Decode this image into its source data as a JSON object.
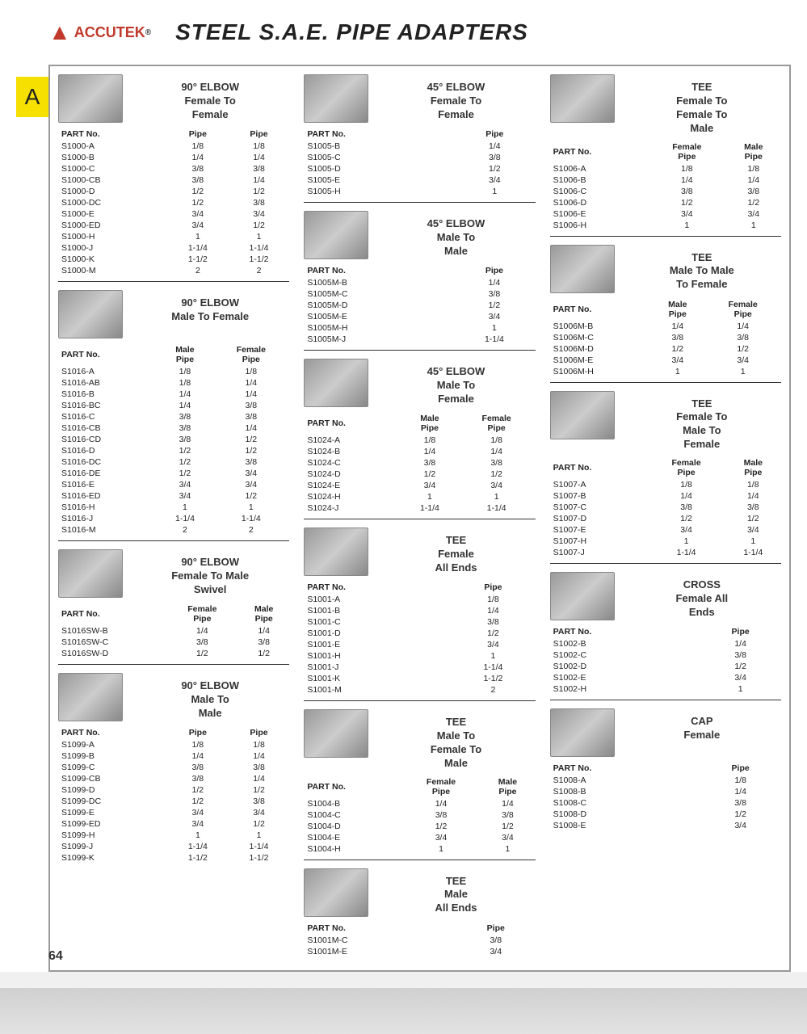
{
  "header": {
    "brand": "ACCUTEK",
    "title": "STEEL S.A.E. PIPE ADAPTERS"
  },
  "tab": "A",
  "page_num": "64",
  "columns": [
    [
      {
        "title": "90° ELBOW\nFemale To\nFemale",
        "headers": [
          "PART No.",
          "Pipe",
          "Pipe"
        ],
        "rows": [
          [
            "S1000-A",
            "1/8",
            "1/8"
          ],
          [
            "S1000-B",
            "1/4",
            "1/4"
          ],
          [
            "S1000-C",
            "3/8",
            "3/8"
          ],
          [
            "S1000-CB",
            "3/8",
            "1/4"
          ],
          [
            "S1000-D",
            "1/2",
            "1/2"
          ],
          [
            "S1000-DC",
            "1/2",
            "3/8"
          ],
          [
            "S1000-E",
            "3/4",
            "3/4"
          ],
          [
            "S1000-ED",
            "3/4",
            "1/2"
          ],
          [
            "S1000-H",
            "1",
            "1"
          ],
          [
            "S1000-J",
            "1-1/4",
            "1-1/4"
          ],
          [
            "S1000-K",
            "1-1/2",
            "1-1/2"
          ],
          [
            "S1000-M",
            "2",
            "2"
          ]
        ]
      },
      {
        "title": "90° ELBOW\nMale To Female",
        "headers": [
          "PART No.",
          "Male\nPipe",
          "Female\nPipe"
        ],
        "rows": [
          [
            "S1016-A",
            "1/8",
            "1/8"
          ],
          [
            "S1016-AB",
            "1/8",
            "1/4"
          ],
          [
            "S1016-B",
            "1/4",
            "1/4"
          ],
          [
            "S1016-BC",
            "1/4",
            "3/8"
          ],
          [
            "S1016-C",
            "3/8",
            "3/8"
          ],
          [
            "S1016-CB",
            "3/8",
            "1/4"
          ],
          [
            "S1016-CD",
            "3/8",
            "1/2"
          ],
          [
            "S1016-D",
            "1/2",
            "1/2"
          ],
          [
            "S1016-DC",
            "1/2",
            "3/8"
          ],
          [
            "S1016-DE",
            "1/2",
            "3/4"
          ],
          [
            "S1016-E",
            "3/4",
            "3/4"
          ],
          [
            "S1016-ED",
            "3/4",
            "1/2"
          ],
          [
            "S1016-H",
            "1",
            "1"
          ],
          [
            "S1016-J",
            "1-1/4",
            "1-1/4"
          ],
          [
            "S1016-M",
            "2",
            "2"
          ]
        ]
      },
      {
        "title": "90° ELBOW\nFemale To Male\nSwivel",
        "headers": [
          "PART No.",
          "Female\nPipe",
          "Male\nPipe"
        ],
        "rows": [
          [
            "S1016SW-B",
            "1/4",
            "1/4"
          ],
          [
            "S1016SW-C",
            "3/8",
            "3/8"
          ],
          [
            "S1016SW-D",
            "1/2",
            "1/2"
          ]
        ]
      },
      {
        "title": "90° ELBOW\nMale To\nMale",
        "headers": [
          "PART No.",
          "Pipe",
          "Pipe"
        ],
        "rows": [
          [
            "S1099-A",
            "1/8",
            "1/8"
          ],
          [
            "S1099-B",
            "1/4",
            "1/4"
          ],
          [
            "S1099-C",
            "3/8",
            "3/8"
          ],
          [
            "S1099-CB",
            "3/8",
            "1/4"
          ],
          [
            "S1099-D",
            "1/2",
            "1/2"
          ],
          [
            "S1099-DC",
            "1/2",
            "3/8"
          ],
          [
            "S1099-E",
            "3/4",
            "3/4"
          ],
          [
            "S1099-ED",
            "3/4",
            "1/2"
          ],
          [
            "S1099-H",
            "1",
            "1"
          ],
          [
            "S1099-J",
            "1-1/4",
            "1-1/4"
          ],
          [
            "S1099-K",
            "1-1/2",
            "1-1/2"
          ]
        ]
      }
    ],
    [
      {
        "title": "45° ELBOW\nFemale To\nFemale",
        "headers": [
          "PART No.",
          "Pipe"
        ],
        "rows": [
          [
            "S1005-B",
            "1/4"
          ],
          [
            "S1005-C",
            "3/8"
          ],
          [
            "S1005-D",
            "1/2"
          ],
          [
            "S1005-E",
            "3/4"
          ],
          [
            "S1005-H",
            "1"
          ]
        ]
      },
      {
        "title": "45° ELBOW\nMale To\nMale",
        "headers": [
          "PART No.",
          "Pipe"
        ],
        "rows": [
          [
            "S1005M-B",
            "1/4"
          ],
          [
            "S1005M-C",
            "3/8"
          ],
          [
            "S1005M-D",
            "1/2"
          ],
          [
            "S1005M-E",
            "3/4"
          ],
          [
            "S1005M-H",
            "1"
          ],
          [
            "S1005M-J",
            "1-1/4"
          ]
        ]
      },
      {
        "title": "45° ELBOW\nMale To\nFemale",
        "headers": [
          "PART No.",
          "Male\nPipe",
          "Female\nPipe"
        ],
        "rows": [
          [
            "S1024-A",
            "1/8",
            "1/8"
          ],
          [
            "S1024-B",
            "1/4",
            "1/4"
          ],
          [
            "S1024-C",
            "3/8",
            "3/8"
          ],
          [
            "S1024-D",
            "1/2",
            "1/2"
          ],
          [
            "S1024-E",
            "3/4",
            "3/4"
          ],
          [
            "S1024-H",
            "1",
            "1"
          ],
          [
            "S1024-J",
            "1-1/4",
            "1-1/4"
          ]
        ]
      },
      {
        "title": "TEE\nFemale\nAll Ends",
        "headers": [
          "PART No.",
          "Pipe"
        ],
        "rows": [
          [
            "S1001-A",
            "1/8"
          ],
          [
            "S1001-B",
            "1/4"
          ],
          [
            "S1001-C",
            "3/8"
          ],
          [
            "S1001-D",
            "1/2"
          ],
          [
            "S1001-E",
            "3/4"
          ],
          [
            "S1001-H",
            "1"
          ],
          [
            "S1001-J",
            "1-1/4"
          ],
          [
            "S1001-K",
            "1-1/2"
          ],
          [
            "S1001-M",
            "2"
          ]
        ]
      },
      {
        "title": "TEE\nMale To\nFemale To\nMale",
        "headers": [
          "PART No.",
          "Female\nPipe",
          "Male\nPipe"
        ],
        "rows": [
          [
            "S1004-B",
            "1/4",
            "1/4"
          ],
          [
            "S1004-C",
            "3/8",
            "3/8"
          ],
          [
            "S1004-D",
            "1/2",
            "1/2"
          ],
          [
            "S1004-E",
            "3/4",
            "3/4"
          ],
          [
            "S1004-H",
            "1",
            "1"
          ]
        ]
      },
      {
        "title": "TEE\nMale\nAll Ends",
        "headers": [
          "PART No.",
          "Pipe"
        ],
        "rows": [
          [
            "S1001M-C",
            "3/8"
          ],
          [
            "S1001M-E",
            "3/4"
          ]
        ]
      }
    ],
    [
      {
        "title": "TEE\nFemale To\nFemale To\nMale",
        "headers": [
          "PART No.",
          "Female\nPipe",
          "Male\nPipe"
        ],
        "rows": [
          [
            "S1006-A",
            "1/8",
            "1/8"
          ],
          [
            "S1006-B",
            "1/4",
            "1/4"
          ],
          [
            "S1006-C",
            "3/8",
            "3/8"
          ],
          [
            "S1006-D",
            "1/2",
            "1/2"
          ],
          [
            "S1006-E",
            "3/4",
            "3/4"
          ],
          [
            "S1006-H",
            "1",
            "1"
          ]
        ]
      },
      {
        "title": "TEE\nMale To Male\nTo Female",
        "headers": [
          "PART No.",
          "Male\nPipe",
          "Female\nPipe"
        ],
        "rows": [
          [
            "S1006M-B",
            "1/4",
            "1/4"
          ],
          [
            "S1006M-C",
            "3/8",
            "3/8"
          ],
          [
            "S1006M-D",
            "1/2",
            "1/2"
          ],
          [
            "S1006M-E",
            "3/4",
            "3/4"
          ],
          [
            "S1006M-H",
            "1",
            "1"
          ]
        ]
      },
      {
        "title": "TEE\nFemale To\nMale To\nFemale",
        "headers": [
          "PART No.",
          "Female\nPipe",
          "Male\nPipe"
        ],
        "rows": [
          [
            "S1007-A",
            "1/8",
            "1/8"
          ],
          [
            "S1007-B",
            "1/4",
            "1/4"
          ],
          [
            "S1007-C",
            "3/8",
            "3/8"
          ],
          [
            "S1007-D",
            "1/2",
            "1/2"
          ],
          [
            "S1007-E",
            "3/4",
            "3/4"
          ],
          [
            "S1007-H",
            "1",
            "1"
          ],
          [
            "S1007-J",
            "1-1/4",
            "1-1/4"
          ]
        ]
      },
      {
        "title": "CROSS\nFemale All\nEnds",
        "headers": [
          "PART No.",
          "Pipe"
        ],
        "rows": [
          [
            "S1002-B",
            "1/4"
          ],
          [
            "S1002-C",
            "3/8"
          ],
          [
            "S1002-D",
            "1/2"
          ],
          [
            "S1002-E",
            "3/4"
          ],
          [
            "S1002-H",
            "1"
          ]
        ]
      },
      {
        "title": "CAP\nFemale",
        "headers": [
          "PART No.",
          "Pipe"
        ],
        "rows": [
          [
            "S1008-A",
            "1/8"
          ],
          [
            "S1008-B",
            "1/4"
          ],
          [
            "S1008-C",
            "3/8"
          ],
          [
            "S1008-D",
            "1/2"
          ],
          [
            "S1008-E",
            "3/4"
          ]
        ]
      }
    ]
  ]
}
